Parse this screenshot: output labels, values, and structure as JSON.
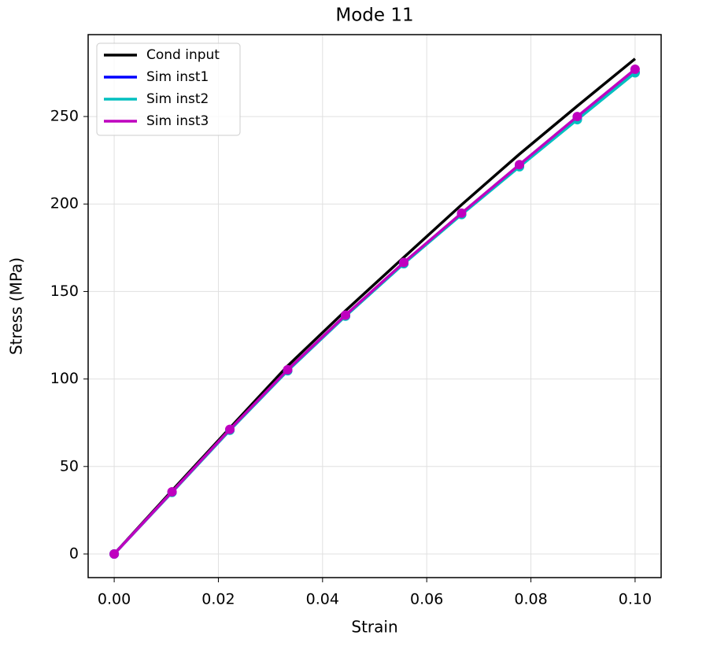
{
  "chart_data": {
    "type": "line",
    "title": "Mode 11",
    "xlabel": "Strain",
    "ylabel": "Stress (MPa)",
    "x": [
      0,
      0.0111,
      0.0222,
      0.0333,
      0.0444,
      0.0556,
      0.0667,
      0.0778,
      0.0889,
      0.1
    ],
    "series": [
      {
        "name": "Cond input",
        "color": "#000000",
        "markers": false,
        "values": [
          0,
          36.2,
          72.0,
          107.5,
          139.0,
          169.5,
          199.6,
          228.5,
          256.0,
          283.0
        ]
      },
      {
        "name": "Sim inst1",
        "color": "#0000ff",
        "markers": true,
        "values": [
          0,
          35.3,
          70.8,
          104.8,
          136.0,
          166.0,
          194.2,
          221.5,
          248.5,
          275.3
        ]
      },
      {
        "name": "Sim inst2",
        "color": "#00bfbf",
        "markers": true,
        "values": [
          0,
          35.2,
          70.7,
          104.7,
          135.9,
          165.9,
          194.0,
          221.3,
          248.2,
          275.0
        ]
      },
      {
        "name": "Sim inst3",
        "color": "#bf00bf",
        "markers": true,
        "values": [
          0,
          35.5,
          71.2,
          105.3,
          136.5,
          166.6,
          194.8,
          222.5,
          250.0,
          277.0
        ]
      }
    ],
    "xlim": [
      -0.005,
      0.105
    ],
    "xticks": [
      {
        "value": 0,
        "label": "0.00"
      },
      {
        "value": 0.02,
        "label": "0.02"
      },
      {
        "value": 0.04,
        "label": "0.04"
      },
      {
        "value": 0.06,
        "label": "0.06"
      },
      {
        "value": 0.08,
        "label": "0.08"
      },
      {
        "value": 0.1,
        "label": "0.10"
      }
    ],
    "ylim": [
      -13.5,
      296.8
    ],
    "yticks": [
      0,
      50,
      100,
      150,
      200,
      250
    ],
    "grid": true,
    "legend": "upper left"
  }
}
